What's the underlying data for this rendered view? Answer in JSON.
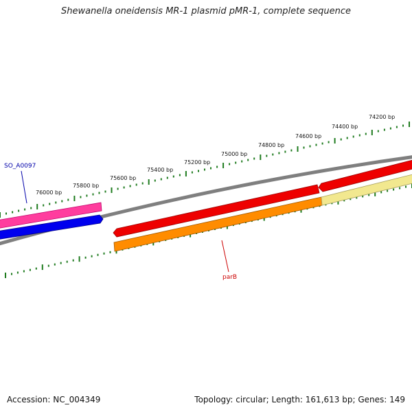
{
  "title": "Shewanella oneidensis MR-1 plasmid pMR-1, complete sequence",
  "footer": {
    "accession": "Accession: NC_004349",
    "summary": "Topology: circular; Length: 161,613 bp; Genes: 149"
  },
  "scale_labels": [
    "74200 bp",
    "74400 bp",
    "74600 bp",
    "74800 bp",
    "75000 bp",
    "75200 bp",
    "75400 bp",
    "75600 bp",
    "75800 bp",
    "76000 bp"
  ],
  "genes": [
    {
      "name": "SO_A0097",
      "color": "#0000aa"
    },
    {
      "name": "parB",
      "color": "#cc0000"
    }
  ],
  "colors": {
    "backbone": "#7f7f7f",
    "tick": "#1e7b1e",
    "pink_feature": "#ff3d9e",
    "blue_feature": "#0000ee",
    "red_feature": "#ee0000",
    "orange_feature": "#ff8c00",
    "yellow_feature": "#f2e88f"
  }
}
